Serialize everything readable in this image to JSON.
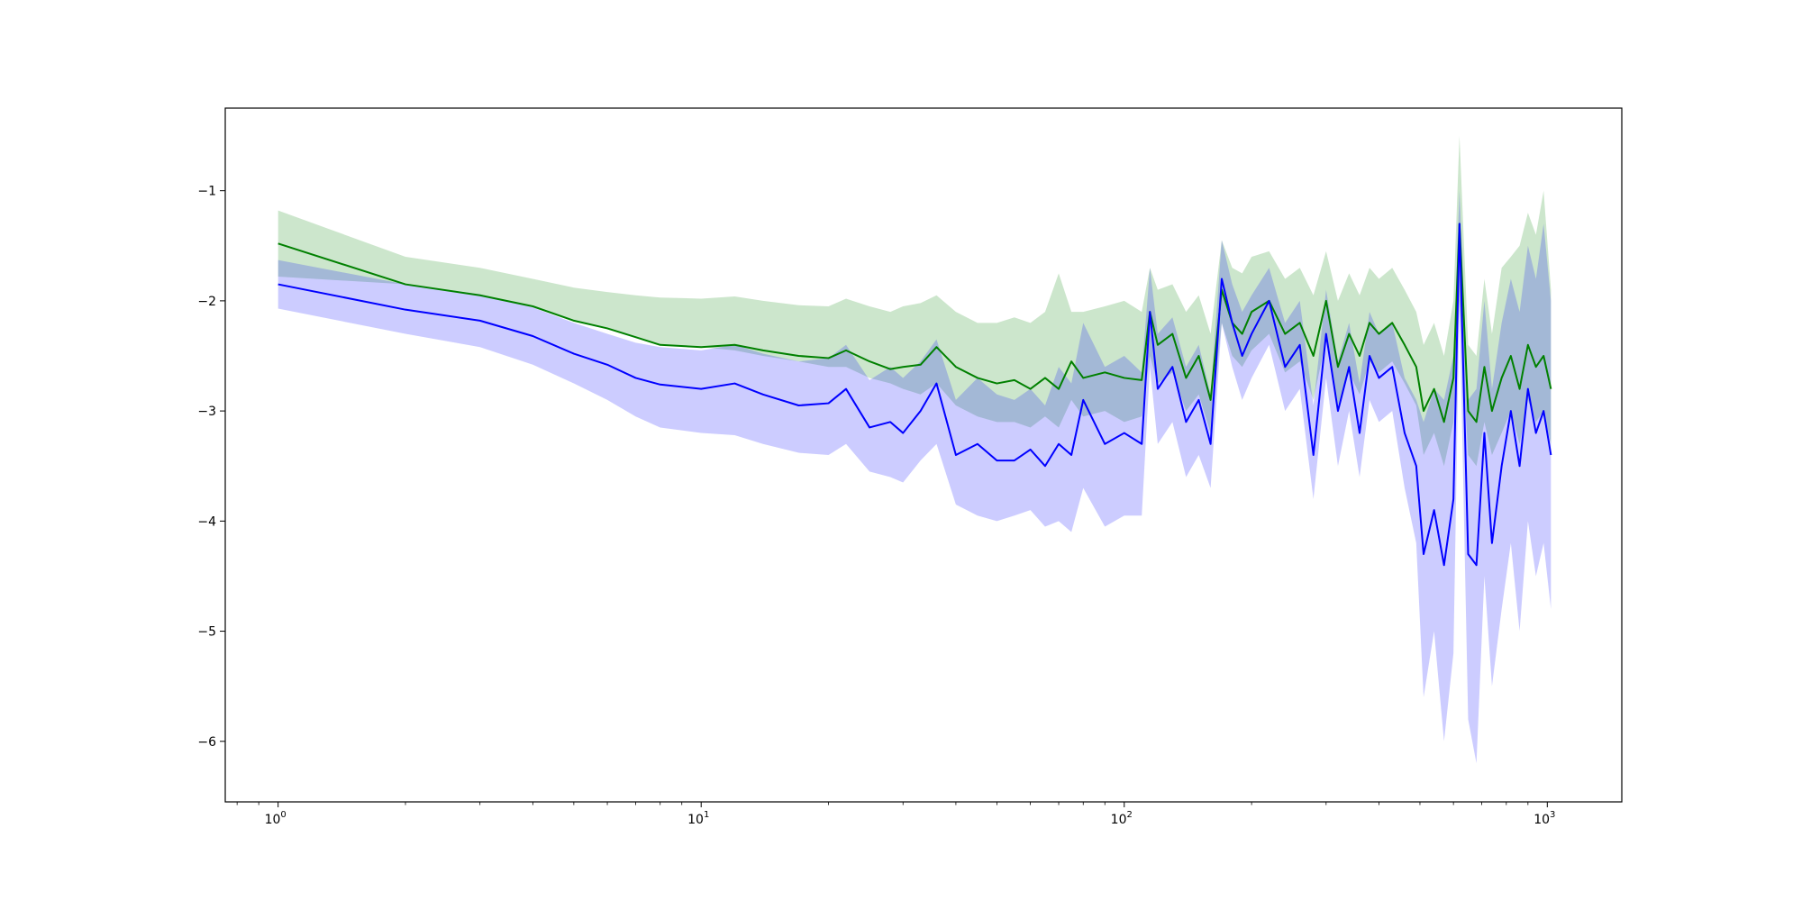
{
  "chart_data": {
    "type": "line",
    "title": "",
    "xlabel": "",
    "ylabel": "",
    "xscale": "log",
    "xlim": [
      0.75,
      1500
    ],
    "ylim": [
      -6.55,
      -0.25
    ],
    "grid": false,
    "legend": "none",
    "x_ticks": [
      {
        "value": 1,
        "base": "10",
        "exp": "0"
      },
      {
        "value": 10,
        "base": "10",
        "exp": "1"
      },
      {
        "value": 100,
        "base": "10",
        "exp": "2"
      },
      {
        "value": 1000,
        "base": "10",
        "exp": "3"
      }
    ],
    "y_ticks": [
      {
        "value": -1,
        "label": "−1"
      },
      {
        "value": -2,
        "label": "−2"
      },
      {
        "value": -3,
        "label": "−3"
      },
      {
        "value": -4,
        "label": "−4"
      },
      {
        "value": -5,
        "label": "−5"
      },
      {
        "value": -6,
        "label": "−6"
      }
    ],
    "series": [
      {
        "color": "#008000",
        "band_color": "#008000",
        "band_opacity": 0.2,
        "x": [
          1,
          2,
          3,
          4,
          5,
          6,
          7,
          8,
          10,
          12,
          14,
          17,
          20,
          22,
          25,
          28,
          30,
          33,
          36,
          40,
          45,
          50,
          55,
          60,
          65,
          70,
          75,
          80,
          90,
          100,
          110,
          115,
          120,
          130,
          140,
          150,
          160,
          170,
          180,
          190,
          200,
          220,
          240,
          260,
          280,
          300,
          320,
          340,
          360,
          380,
          400,
          430,
          460,
          490,
          510,
          540,
          570,
          600,
          620,
          650,
          680,
          710,
          740,
          780,
          820,
          860,
          900,
          940,
          980,
          1020
        ],
        "y": [
          -1.48,
          -1.85,
          -1.95,
          -2.05,
          -2.18,
          -2.25,
          -2.33,
          -2.4,
          -2.42,
          -2.4,
          -2.45,
          -2.5,
          -2.52,
          -2.45,
          -2.55,
          -2.62,
          -2.6,
          -2.58,
          -2.42,
          -2.6,
          -2.7,
          -2.75,
          -2.72,
          -2.8,
          -2.7,
          -2.8,
          -2.55,
          -2.7,
          -2.65,
          -2.7,
          -2.72,
          -2.1,
          -2.4,
          -2.3,
          -2.7,
          -2.5,
          -2.9,
          -1.9,
          -2.2,
          -2.3,
          -2.1,
          -2.0,
          -2.3,
          -2.2,
          -2.5,
          -2.0,
          -2.6,
          -2.3,
          -2.5,
          -2.2,
          -2.3,
          -2.2,
          -2.4,
          -2.6,
          -3.0,
          -2.8,
          -3.1,
          -2.7,
          -1.3,
          -3.0,
          -3.1,
          -2.6,
          -3.0,
          -2.7,
          -2.5,
          -2.8,
          -2.4,
          -2.6,
          -2.5,
          -2.8
        ],
        "y_lower": [
          -1.78,
          -1.85,
          -1.95,
          -2.05,
          -2.18,
          -2.25,
          -2.33,
          -2.4,
          -2.42,
          -2.45,
          -2.5,
          -2.55,
          -2.6,
          -2.6,
          -2.7,
          -2.75,
          -2.8,
          -2.85,
          -2.75,
          -2.95,
          -3.05,
          -3.1,
          -3.1,
          -3.15,
          -3.05,
          -3.15,
          -2.9,
          -3.05,
          -3.0,
          -3.1,
          -3.05,
          -2.5,
          -2.75,
          -2.65,
          -3.0,
          -2.85,
          -3.2,
          -2.2,
          -2.5,
          -2.6,
          -2.45,
          -2.3,
          -2.65,
          -2.55,
          -2.9,
          -2.35,
          -2.95,
          -2.65,
          -2.85,
          -2.55,
          -2.65,
          -2.55,
          -2.75,
          -2.95,
          -3.4,
          -3.2,
          -3.5,
          -3.1,
          -2.0,
          -3.4,
          -3.5,
          -3.1,
          -3.4,
          -3.2,
          -3.0,
          -3.3,
          -2.9,
          -3.1,
          -3.0,
          -3.3
        ],
        "y_upper": [
          -1.18,
          -1.6,
          -1.7,
          -1.8,
          -1.88,
          -1.92,
          -1.95,
          -1.97,
          -1.98,
          -1.96,
          -2.0,
          -2.04,
          -2.05,
          -1.98,
          -2.05,
          -2.1,
          -2.05,
          -2.02,
          -1.95,
          -2.1,
          -2.2,
          -2.2,
          -2.15,
          -2.2,
          -2.1,
          -1.75,
          -2.1,
          -2.1,
          -2.05,
          -2.0,
          -2.1,
          -1.7,
          -1.9,
          -1.85,
          -2.1,
          -1.95,
          -2.3,
          -1.45,
          -1.7,
          -1.75,
          -1.6,
          -1.55,
          -1.8,
          -1.7,
          -1.95,
          -1.55,
          -2.0,
          -1.75,
          -1.95,
          -1.7,
          -1.8,
          -1.7,
          -1.9,
          -2.1,
          -2.4,
          -2.2,
          -2.5,
          -2.0,
          -0.5,
          -2.4,
          -2.5,
          -1.8,
          -2.3,
          -1.7,
          -1.6,
          -1.5,
          -1.2,
          -1.4,
          -1.0,
          -1.9
        ]
      },
      {
        "color": "#0000ff",
        "band_color": "#0000ff",
        "band_opacity": 0.2,
        "x": [
          1,
          2,
          3,
          4,
          5,
          6,
          7,
          8,
          10,
          12,
          14,
          17,
          20,
          22,
          25,
          28,
          30,
          33,
          36,
          40,
          45,
          50,
          55,
          60,
          65,
          70,
          75,
          80,
          90,
          100,
          110,
          115,
          120,
          130,
          140,
          150,
          160,
          170,
          180,
          190,
          200,
          220,
          240,
          260,
          280,
          300,
          320,
          340,
          360,
          380,
          400,
          430,
          460,
          490,
          510,
          540,
          570,
          600,
          620,
          650,
          680,
          710,
          740,
          780,
          820,
          860,
          900,
          940,
          980,
          1020
        ],
        "y": [
          -1.85,
          -2.08,
          -2.18,
          -2.32,
          -2.48,
          -2.58,
          -2.7,
          -2.76,
          -2.8,
          -2.75,
          -2.85,
          -2.95,
          -2.93,
          -2.8,
          -3.15,
          -3.1,
          -3.2,
          -3.0,
          -2.75,
          -3.4,
          -3.3,
          -3.45,
          -3.45,
          -3.35,
          -3.5,
          -3.3,
          -3.4,
          -2.9,
          -3.3,
          -3.2,
          -3.3,
          -2.1,
          -2.8,
          -2.6,
          -3.1,
          -2.9,
          -3.3,
          -1.8,
          -2.2,
          -2.5,
          -2.3,
          -2.0,
          -2.6,
          -2.4,
          -3.4,
          -2.3,
          -3.0,
          -2.6,
          -3.2,
          -2.5,
          -2.7,
          -2.6,
          -3.2,
          -3.5,
          -4.3,
          -3.9,
          -4.4,
          -3.8,
          -1.3,
          -4.3,
          -4.4,
          -3.2,
          -4.2,
          -3.5,
          -3.0,
          -3.5,
          -2.8,
          -3.2,
          -3.0,
          -3.4
        ],
        "y_lower": [
          -2.07,
          -2.3,
          -2.42,
          -2.58,
          -2.75,
          -2.9,
          -3.05,
          -3.15,
          -3.2,
          -3.22,
          -3.3,
          -3.38,
          -3.4,
          -3.3,
          -3.55,
          -3.6,
          -3.65,
          -3.45,
          -3.3,
          -3.85,
          -3.95,
          -4.0,
          -3.95,
          -3.9,
          -4.05,
          -4.0,
          -4.1,
          -3.7,
          -4.05,
          -3.95,
          -3.95,
          -2.6,
          -3.3,
          -3.1,
          -3.6,
          -3.4,
          -3.7,
          -2.2,
          -2.6,
          -2.9,
          -2.7,
          -2.4,
          -3.0,
          -2.8,
          -3.8,
          -2.7,
          -3.5,
          -3.0,
          -3.6,
          -2.9,
          -3.1,
          -3.0,
          -3.7,
          -4.2,
          -5.6,
          -5.0,
          -6.0,
          -5.2,
          -2.0,
          -5.8,
          -6.2,
          -4.5,
          -5.5,
          -4.8,
          -4.2,
          -5.0,
          -4.0,
          -4.5,
          -4.2,
          -4.8
        ],
        "y_upper": [
          -1.63,
          -1.85,
          -1.94,
          -2.06,
          -2.2,
          -2.3,
          -2.38,
          -2.42,
          -2.45,
          -2.4,
          -2.48,
          -2.55,
          -2.52,
          -2.4,
          -2.72,
          -2.6,
          -2.7,
          -2.55,
          -2.35,
          -2.9,
          -2.7,
          -2.85,
          -2.9,
          -2.8,
          -2.95,
          -2.6,
          -2.75,
          -2.2,
          -2.6,
          -2.5,
          -2.65,
          -1.7,
          -2.3,
          -2.15,
          -2.6,
          -2.4,
          -2.85,
          -1.45,
          -1.85,
          -2.1,
          -1.95,
          -1.7,
          -2.2,
          -2.0,
          -2.95,
          -1.9,
          -2.55,
          -2.2,
          -2.75,
          -2.1,
          -2.3,
          -2.2,
          -2.7,
          -2.9,
          -3.1,
          -2.8,
          -2.9,
          -2.5,
          -1.0,
          -2.9,
          -2.8,
          -2.0,
          -2.8,
          -2.2,
          -1.8,
          -2.1,
          -1.5,
          -1.8,
          -1.3,
          -2.0
        ]
      }
    ]
  }
}
